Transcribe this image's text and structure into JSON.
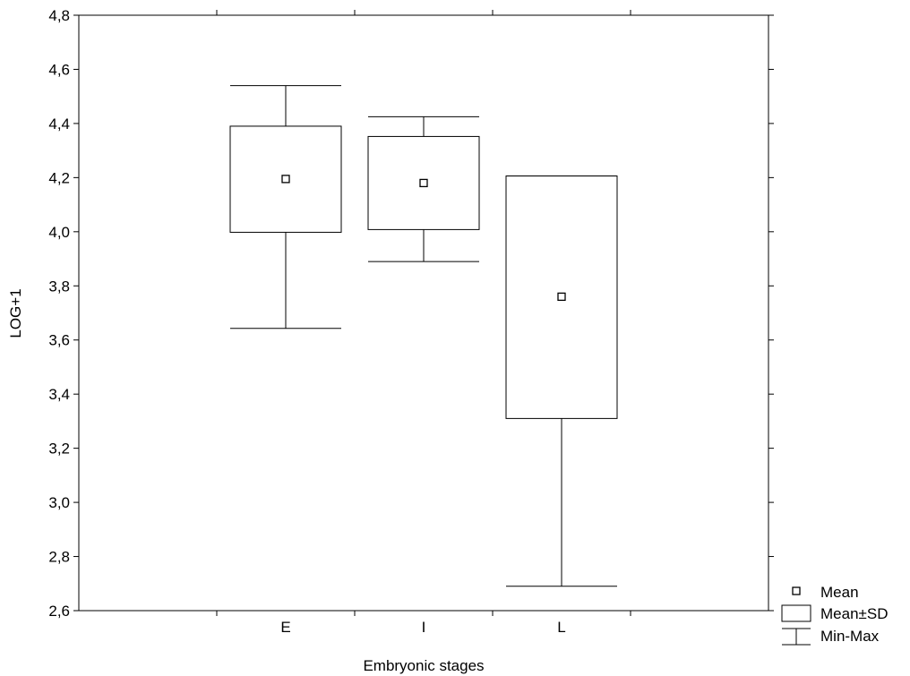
{
  "chart_data": {
    "type": "box",
    "xlabel": "Embryonic stages",
    "ylabel": "LOG+1",
    "ylim": [
      2.6,
      4.8
    ],
    "yticks": [
      2.6,
      2.8,
      3.0,
      3.2,
      3.4,
      3.6,
      3.8,
      4.0,
      4.2,
      4.4,
      4.6,
      4.8
    ],
    "ytick_labels": [
      "2,6",
      "2,8",
      "3,0",
      "3,2",
      "3,4",
      "3,6",
      "3,8",
      "4,0",
      "4,2",
      "4,4",
      "4,6",
      "4,8"
    ],
    "categories": [
      "E",
      "I",
      "L"
    ],
    "boxes": [
      {
        "category": "E",
        "mean": 4.195,
        "sd_low": 3.998,
        "sd_high": 4.39,
        "min": 3.643,
        "max": 4.54
      },
      {
        "category": "I",
        "mean": 4.18,
        "sd_low": 4.008,
        "sd_high": 4.352,
        "min": 3.89,
        "max": 4.425
      },
      {
        "category": "L",
        "mean": 3.76,
        "sd_low": 3.31,
        "sd_high": 4.206,
        "min": 2.69,
        "max": 4.206
      }
    ],
    "legend": {
      "placement": "bottom-right",
      "entries": [
        "Mean",
        "Mean±SD",
        "Min-Max"
      ]
    },
    "grid": false
  }
}
